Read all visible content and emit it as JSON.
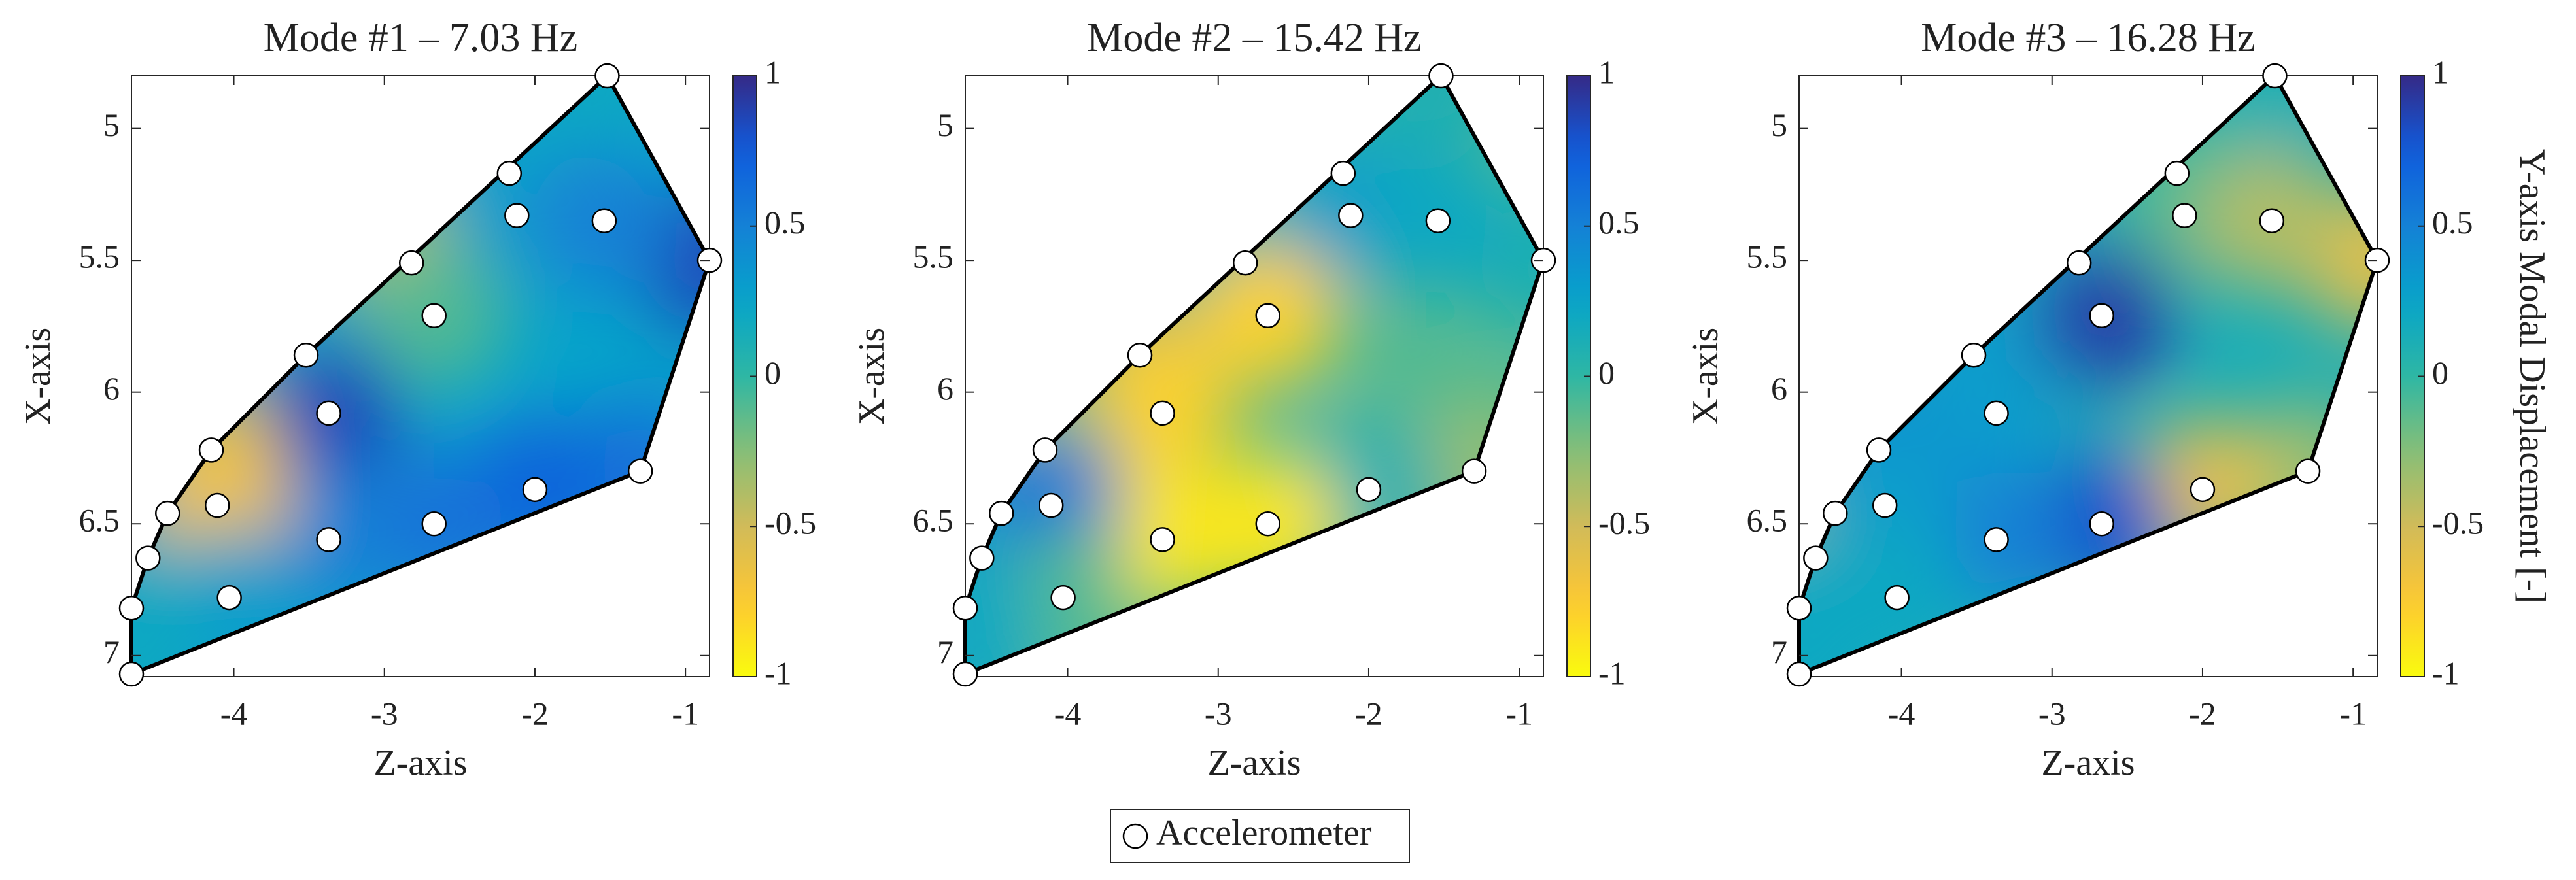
{
  "chart_data": [
    {
      "type": "contour",
      "title": "Mode #1 – 7.03 Hz",
      "xlabel": "Z-axis",
      "ylabel": "X-axis",
      "xlim": [
        -4.68,
        -0.84
      ],
      "ylim": [
        4.8,
        7.08
      ],
      "y_reversed": true,
      "xticks": [
        -4,
        -3,
        -2,
        -1
      ],
      "yticks": [
        5,
        5.5,
        6,
        6.5,
        7
      ],
      "clim": [
        -1,
        1
      ],
      "cticks": [
        -1,
        -0.5,
        0,
        0.5,
        1
      ],
      "colormap": "parula-reversed",
      "series": [
        {
          "name": "Accelerometer",
          "x": [
            -1.52,
            -0.84,
            -2.17,
            -2.82,
            -2.12,
            -1.54,
            -2.67,
            -3.52,
            -3.37,
            -4.15,
            -1.3,
            -2.0,
            -2.67,
            -3.37,
            -4.44,
            -4.57,
            -4.11,
            -4.03,
            -4.68,
            -4.68
          ],
          "y": [
            4.8,
            5.5,
            5.17,
            5.51,
            5.33,
            5.35,
            5.71,
            5.86,
            6.08,
            6.22,
            6.3,
            6.37,
            6.5,
            6.56,
            6.46,
            6.63,
            6.43,
            6.78,
            6.82,
            7.07
          ],
          "values": [
            0.2,
            0.85,
            0.2,
            -0.4,
            0.3,
            0.5,
            -0.1,
            0.2,
            0.85,
            -0.5,
            0.6,
            0.7,
            0.6,
            0.5,
            0.4,
            0.3,
            -0.7,
            0.3,
            0.2,
            0.2
          ]
        }
      ]
    },
    {
      "type": "contour",
      "title": "Mode #2 – 15.42 Hz",
      "xlabel": "Z-axis",
      "ylabel": "X-axis",
      "xlim": [
        -4.68,
        -0.84
      ],
      "ylim": [
        4.8,
        7.08
      ],
      "y_reversed": true,
      "xticks": [
        -4,
        -3,
        -2,
        -1
      ],
      "yticks": [
        5,
        5.5,
        6,
        6.5,
        7
      ],
      "clim": [
        -1,
        1
      ],
      "cticks": [
        -1,
        -0.5,
        0,
        0.5,
        1
      ],
      "colormap": "parula-reversed",
      "series": [
        {
          "x": [
            -1.52,
            -0.84,
            -2.17,
            -2.82,
            -2.12,
            -1.54,
            -2.67,
            -3.52,
            -3.37,
            -4.15,
            -1.3,
            -2.0,
            -2.67,
            -3.37,
            -4.44,
            -4.57,
            -4.11,
            -4.03,
            -4.68,
            -4.68
          ],
          "y": [
            4.8,
            5.5,
            5.17,
            5.51,
            5.33,
            5.35,
            5.71,
            5.86,
            6.08,
            6.22,
            6.3,
            6.37,
            6.5,
            6.56,
            6.46,
            6.63,
            6.43,
            6.78,
            6.82,
            7.07
          ],
          "values": [
            0.1,
            0.1,
            0.1,
            0.1,
            0.3,
            0.2,
            -0.8,
            -0.5,
            -0.8,
            -0.3,
            -0.3,
            0.1,
            -0.9,
            -0.9,
            0.4,
            0.2,
            0.6,
            -0.1,
            0.2,
            0.2
          ]
        }
      ]
    },
    {
      "type": "contour",
      "title": "Mode #3 – 16.28 Hz",
      "xlabel": "Z-axis",
      "ylabel": "X-axis",
      "xlim": [
        -4.68,
        -0.84
      ],
      "ylim": [
        4.8,
        7.08
      ],
      "y_reversed": true,
      "xticks": [
        -4,
        -3,
        -2,
        -1
      ],
      "yticks": [
        5,
        5.5,
        6,
        6.5,
        7
      ],
      "clim": [
        -1,
        1
      ],
      "cticks": [
        -1,
        -0.5,
        0,
        0.5,
        1
      ],
      "colormap": "parula-reversed",
      "colorbar_label": "Y-axis Modal Displacement [-]",
      "series": [
        {
          "x": [
            -1.52,
            -0.84,
            -2.17,
            -2.82,
            -2.12,
            -1.54,
            -2.67,
            -3.52,
            -3.37,
            -4.15,
            -1.3,
            -2.0,
            -2.67,
            -3.37,
            -4.44,
            -4.57,
            -4.11,
            -4.03,
            -4.68,
            -4.68
          ],
          "y": [
            4.8,
            5.5,
            5.17,
            5.51,
            5.33,
            5.35,
            5.71,
            5.86,
            6.08,
            6.22,
            6.3,
            6.37,
            6.5,
            6.56,
            6.46,
            6.63,
            6.43,
            6.78,
            6.82,
            7.07
          ],
          "values": [
            0.1,
            -0.6,
            0.0,
            0.2,
            -0.1,
            -0.4,
            0.9,
            0.3,
            0.3,
            0.4,
            -0.3,
            -0.6,
            0.8,
            0.5,
            0.3,
            -0.3,
            0.3,
            0.2,
            0.2,
            0.2
          ]
        }
      ]
    }
  ]
}
